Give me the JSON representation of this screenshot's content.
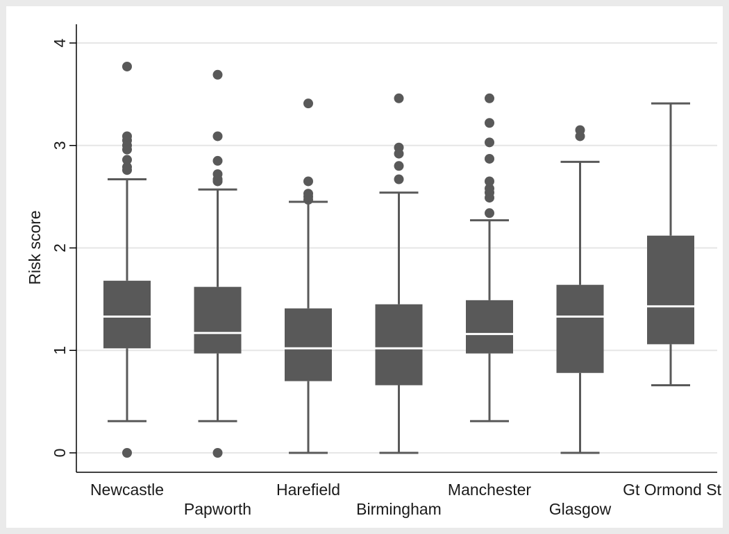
{
  "chart_data": {
    "type": "box",
    "title": "",
    "xlabel": "",
    "ylabel": "Risk score",
    "ylim": [
      -0.2,
      4.2
    ],
    "yticks": [
      0,
      1,
      2,
      3,
      4
    ],
    "ytick_labels": [
      "0",
      "1",
      "2",
      "3",
      "4"
    ],
    "grid": "horizontal",
    "legend": "none",
    "colors": {
      "box": "#595959",
      "median": "#ffffff",
      "whisker": "#595959",
      "outlier": "#595959",
      "background": "#eaeaea",
      "grid": "#e6e6e6"
    },
    "categories": [
      "Newcastle",
      "Papworth",
      "Harefield",
      "Birmingham",
      "Manchester",
      "Glasgow",
      "Gt Ormond St"
    ],
    "boxes": [
      {
        "label": "Newcastle",
        "whisker_low": 0.31,
        "q1": 1.02,
        "median": 1.33,
        "q3": 1.68,
        "whisker_high": 2.67,
        "outliers": [
          0.0,
          2.76,
          2.79,
          2.86,
          2.96,
          3.0,
          3.05,
          3.09,
          3.77
        ]
      },
      {
        "label": "Papworth",
        "whisker_low": 0.31,
        "q1": 0.97,
        "median": 1.17,
        "q3": 1.62,
        "whisker_high": 2.57,
        "outliers": [
          0.0,
          2.65,
          2.67,
          2.72,
          2.85,
          3.09,
          3.69
        ]
      },
      {
        "label": "Harefield",
        "whisker_low": 0.0,
        "q1": 0.7,
        "median": 1.02,
        "q3": 1.41,
        "whisker_high": 2.45,
        "outliers": [
          2.47,
          2.5,
          2.53,
          2.65,
          3.41
        ]
      },
      {
        "label": "Birmingham",
        "whisker_low": 0.0,
        "q1": 0.66,
        "median": 1.02,
        "q3": 1.45,
        "whisker_high": 2.54,
        "outliers": [
          2.67,
          2.8,
          2.92,
          2.98,
          3.46
        ]
      },
      {
        "label": "Manchester",
        "whisker_low": 0.31,
        "q1": 0.97,
        "median": 1.16,
        "q3": 1.49,
        "whisker_high": 2.27,
        "outliers": [
          2.34,
          2.49,
          2.54,
          2.58,
          2.65,
          2.87,
          3.03,
          3.22,
          3.46
        ]
      },
      {
        "label": "Glasgow",
        "whisker_low": 0.0,
        "q1": 0.78,
        "median": 1.33,
        "q3": 1.64,
        "whisker_high": 2.84,
        "outliers": [
          3.09,
          3.15
        ]
      },
      {
        "label": "Gt Ormond St",
        "whisker_low": 0.66,
        "q1": 1.06,
        "median": 1.43,
        "q3": 2.12,
        "whisker_high": 3.41,
        "outliers": []
      }
    ]
  }
}
